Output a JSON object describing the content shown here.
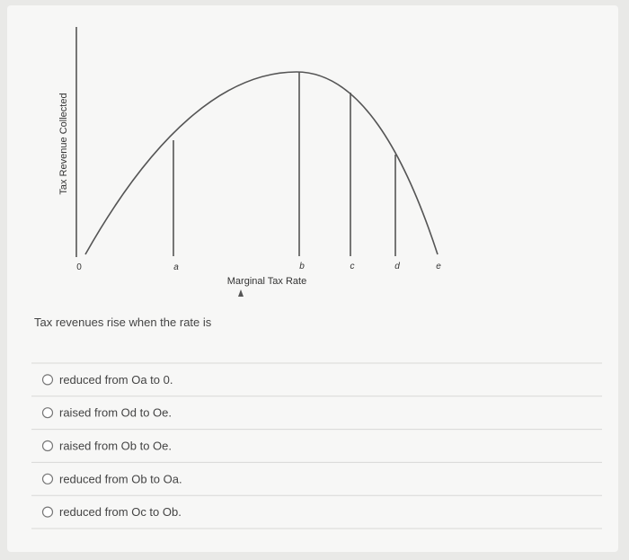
{
  "diagram": {
    "y_axis_label": "Tax Revenue Collected",
    "origin_label": "0",
    "points": [
      "a",
      "b",
      "c",
      "d",
      "e"
    ],
    "x_axis_label": "Marginal Tax Rate"
  },
  "question": "Tax revenues rise when the rate is",
  "options": [
    "reduced from Oa to 0.",
    "raised from Od to Oe.",
    "raised from Ob to Oe.",
    "reduced from Ob to Oa.",
    "reduced from Oc to Ob."
  ]
}
